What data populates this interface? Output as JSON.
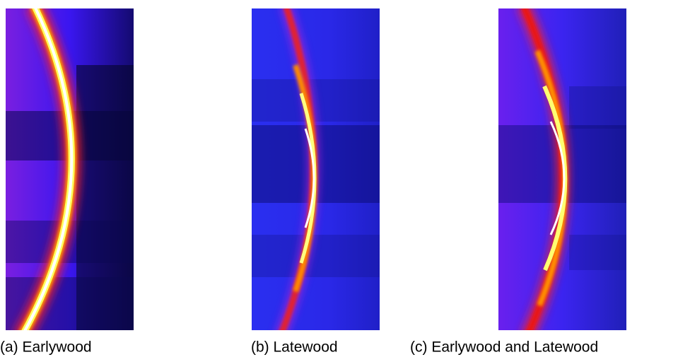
{
  "panels": [
    {
      "caption": "(a) Earlywood"
    },
    {
      "caption": "(b) Latewood"
    },
    {
      "caption": "(c) Earlywood and Latewood"
    }
  ]
}
